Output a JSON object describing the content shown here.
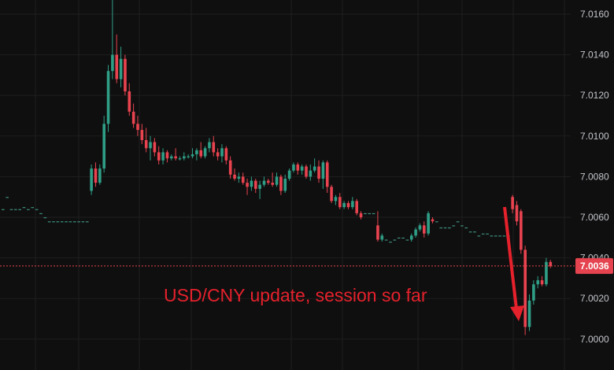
{
  "chart_data": {
    "type": "candlestick",
    "title": "",
    "xlabel": "",
    "ylabel": "",
    "ylim": [
      6.999,
      7.0167
    ],
    "y_ticks": [
      "7.0160",
      "7.0140",
      "7.0120",
      "7.0100",
      "7.0080",
      "7.0060",
      "7.0040",
      "7.0020",
      "7.0000"
    ],
    "y_tick_values": [
      7.016,
      7.014,
      7.012,
      7.01,
      7.008,
      7.006,
      7.004,
      7.002,
      7.0
    ],
    "grid": true,
    "last_price": 7.0036,
    "last_price_label": "7.0036",
    "colors": {
      "up": "#2f9e86",
      "down": "#e8434f",
      "background": "#0f0f0f",
      "grid": "#1f1f1f",
      "annotation": "#e5212c",
      "last_price": "#e5434f"
    },
    "annotation": "USD/CNY update, session so far",
    "candles": [
      [
        7.0064,
        7.0064,
        7.0064,
        7.0064
      ],
      [
        7.007,
        7.007,
        7.007,
        7.007
      ],
      [
        7.0064,
        7.0064,
        7.0064,
        7.0064
      ],
      [
        7.0064,
        7.0064,
        7.0064,
        7.0064
      ],
      [
        7.0064,
        7.0064,
        7.0064,
        7.0064
      ],
      [
        7.0065,
        7.0065,
        7.0065,
        7.0065
      ],
      [
        7.0064,
        7.0064,
        7.0064,
        7.0064
      ],
      [
        7.0065,
        7.0065,
        7.0065,
        7.0065
      ],
      [
        7.0064,
        7.0064,
        7.0064,
        7.0064
      ],
      [
        7.0062,
        7.0062,
        7.0062,
        7.0062
      ],
      [
        7.006,
        7.006,
        7.006,
        7.006
      ],
      [
        7.0058,
        7.0058,
        7.0058,
        7.0058
      ],
      [
        7.0058,
        7.0058,
        7.0058,
        7.0058
      ],
      [
        7.0058,
        7.0058,
        7.0058,
        7.0058
      ],
      [
        7.0058,
        7.0058,
        7.0058,
        7.0058
      ],
      [
        7.0058,
        7.0058,
        7.0058,
        7.0058
      ],
      [
        7.0058,
        7.0058,
        7.0058,
        7.0058
      ],
      [
        7.0058,
        7.0058,
        7.0058,
        7.0058
      ],
      [
        7.0058,
        7.0058,
        7.0058,
        7.0058
      ],
      [
        7.0058,
        7.0058,
        7.0058,
        7.0058
      ],
      [
        7.0058,
        7.0058,
        7.0058,
        7.0058
      ],
      [
        7.0073,
        7.0086,
        7.0071,
        7.0084
      ],
      [
        7.0084,
        7.0087,
        7.0075,
        7.0077
      ],
      [
        7.0077,
        7.0086,
        7.0076,
        7.0084
      ],
      [
        7.0084,
        7.011,
        7.0082,
        7.0106
      ],
      [
        7.0106,
        7.0135,
        7.0102,
        7.0132
      ],
      [
        7.0132,
        7.0167,
        7.0128,
        7.014
      ],
      [
        7.014,
        7.015,
        7.0126,
        7.0128
      ],
      [
        7.0128,
        7.0144,
        7.0124,
        7.0138
      ],
      [
        7.0138,
        7.014,
        7.012,
        7.0122
      ],
      [
        7.0122,
        7.0126,
        7.011,
        7.0112
      ],
      [
        7.0112,
        7.0116,
        7.0104,
        7.0106
      ],
      [
        7.0106,
        7.011,
        7.01,
        7.0103
      ],
      [
        7.0103,
        7.0106,
        7.0096,
        7.0098
      ],
      [
        7.0098,
        7.0104,
        7.0092,
        7.0094
      ],
      [
        7.0094,
        7.01,
        7.0088,
        7.0097
      ],
      [
        7.0097,
        7.0099,
        7.009,
        7.0092
      ],
      [
        7.0092,
        7.0095,
        7.0086,
        7.0088
      ],
      [
        7.0088,
        7.0094,
        7.0086,
        7.0092
      ],
      [
        7.0092,
        7.0093,
        7.0087,
        7.0089
      ],
      [
        7.0089,
        7.0091,
        7.0088,
        7.009
      ],
      [
        7.009,
        7.0094,
        7.0088,
        7.0089
      ],
      [
        7.0089,
        7.009,
        7.0088,
        7.0089
      ],
      [
        7.0089,
        7.0092,
        7.0088,
        7.009
      ],
      [
        7.009,
        7.0091,
        7.0089,
        7.009
      ],
      [
        7.009,
        7.0094,
        7.0089,
        7.0091
      ],
      [
        7.0091,
        7.0094,
        7.0088,
        7.0093
      ],
      [
        7.0093,
        7.0097,
        7.0089,
        7.009
      ],
      [
        7.009,
        7.0095,
        7.0089,
        7.0094
      ],
      [
        7.0094,
        7.0099,
        7.0092,
        7.0097
      ],
      [
        7.0097,
        7.01,
        7.009,
        7.0092
      ],
      [
        7.0092,
        7.0094,
        7.0088,
        7.009
      ],
      [
        7.009,
        7.0096,
        7.0087,
        7.0094
      ],
      [
        7.0094,
        7.0095,
        7.0086,
        7.0088
      ],
      [
        7.0088,
        7.009,
        7.0079,
        7.0081
      ],
      [
        7.0081,
        7.0084,
        7.0078,
        7.0079
      ],
      [
        7.0079,
        7.0082,
        7.0077,
        7.008
      ],
      [
        7.008,
        7.0082,
        7.0076,
        7.0077
      ],
      [
        7.0077,
        7.0079,
        7.0071,
        7.0075
      ],
      [
        7.0075,
        7.008,
        7.0073,
        7.0078
      ],
      [
        7.0078,
        7.0079,
        7.0072,
        7.0074
      ],
      [
        7.0074,
        7.0078,
        7.0069,
        7.0076
      ],
      [
        7.0076,
        7.008,
        7.0075,
        7.0078
      ],
      [
        7.0078,
        7.0079,
        7.0076,
        7.0077
      ],
      [
        7.0077,
        7.0082,
        7.0075,
        7.0076
      ],
      [
        7.0076,
        7.0082,
        7.0075,
        7.008
      ],
      [
        7.008,
        7.0081,
        7.0071,
        7.0073
      ],
      [
        7.0073,
        7.0081,
        7.0072,
        7.0079
      ],
      [
        7.0079,
        7.0084,
        7.0078,
        7.0083
      ],
      [
        7.0083,
        7.0087,
        7.0082,
        7.0086
      ],
      [
        7.0086,
        7.0087,
        7.0081,
        7.0083
      ],
      [
        7.0083,
        7.0086,
        7.0081,
        7.0085
      ],
      [
        7.0085,
        7.0086,
        7.0079,
        7.008
      ],
      [
        7.008,
        7.0086,
        7.0078,
        7.0083
      ],
      [
        7.0083,
        7.0089,
        7.0082,
        7.0085
      ],
      [
        7.0085,
        7.0088,
        7.0077,
        7.0079
      ],
      [
        7.0079,
        7.0088,
        7.0074,
        7.0087
      ],
      [
        7.0087,
        7.0088,
        7.0072,
        7.0075
      ],
      [
        7.0075,
        7.0076,
        7.0067,
        7.0068
      ],
      [
        7.0068,
        7.0071,
        7.0066,
        7.007
      ],
      [
        7.007,
        7.0072,
        7.0064,
        7.0065
      ],
      [
        7.0065,
        7.0068,
        7.0064,
        7.0067
      ],
      [
        7.0067,
        7.0068,
        7.0064,
        7.0065
      ],
      [
        7.0065,
        7.007,
        7.0064,
        7.0068
      ],
      [
        7.0068,
        7.0069,
        7.0061,
        7.0062
      ],
      [
        7.0062,
        7.0063,
        7.0059,
        7.006
      ],
      [
        7.0062,
        7.0062,
        7.0062,
        7.0062
      ],
      [
        7.0062,
        7.0062,
        7.0062,
        7.0062
      ],
      [
        7.0062,
        7.0062,
        7.0062,
        7.0062
      ],
      [
        7.0056,
        7.0063,
        7.0048,
        7.0049
      ],
      [
        7.0049,
        7.0052,
        7.0048,
        7.0051
      ],
      [
        7.0049,
        7.0049,
        7.0049,
        7.0049
      ],
      [
        7.0048,
        7.0048,
        7.0048,
        7.0048
      ],
      [
        7.0049,
        7.0049,
        7.0049,
        7.0049
      ],
      [
        7.005,
        7.005,
        7.005,
        7.005
      ],
      [
        7.005,
        7.005,
        7.005,
        7.005
      ],
      [
        7.0049,
        7.0049,
        7.0049,
        7.0049
      ],
      [
        7.0049,
        7.0052,
        7.0048,
        7.0051
      ],
      [
        7.0051,
        7.0055,
        7.005,
        7.0054
      ],
      [
        7.0054,
        7.0057,
        7.0053,
        7.0056
      ],
      [
        7.0056,
        7.0058,
        7.005,
        7.0052
      ],
      [
        7.0052,
        7.0063,
        7.0051,
        7.0062
      ],
      [
        7.0059,
        7.006,
        7.0057,
        7.0058
      ],
      [
        7.0058,
        7.0058,
        7.0058,
        7.0058
      ],
      [
        7.0055,
        7.0055,
        7.0055,
        7.0055
      ],
      [
        7.0055,
        7.0055,
        7.0055,
        7.0055
      ],
      [
        7.0055,
        7.0055,
        7.0055,
        7.0055
      ],
      [
        7.0056,
        7.0056,
        7.0056,
        7.0056
      ],
      [
        7.0058,
        7.0058,
        7.0058,
        7.0058
      ],
      [
        7.0056,
        7.0056,
        7.0056,
        7.0056
      ],
      [
        7.0055,
        7.0055,
        7.0055,
        7.0055
      ],
      [
        7.0053,
        7.0053,
        7.0053,
        7.0053
      ],
      [
        7.0053,
        7.0053,
        7.0053,
        7.0053
      ],
      [
        7.0051,
        7.0051,
        7.0051,
        7.0051
      ],
      [
        7.0052,
        7.0052,
        7.0052,
        7.0052
      ],
      [
        7.0052,
        7.0052,
        7.0052,
        7.0052
      ],
      [
        7.0051,
        7.0051,
        7.0051,
        7.0051
      ],
      [
        7.0051,
        7.0051,
        7.0051,
        7.0051
      ],
      [
        7.0051,
        7.0051,
        7.0051,
        7.0051
      ],
      [
        7.0051,
        7.0051,
        7.0051,
        7.0051
      ],
      [
        7.0051,
        7.0051,
        7.0051,
        7.0051
      ],
      [
        7.007,
        7.0071,
        7.0062,
        7.0064
      ],
      [
        7.0066,
        7.0068,
        7.0056,
        7.0058
      ],
      [
        7.0063,
        7.0064,
        7.0042,
        7.0044
      ],
      [
        7.0044,
        7.0046,
        7.0002,
        7.0006
      ],
      [
        7.0006,
        7.0022,
        7.0004,
        7.0019
      ],
      [
        7.0019,
        7.0029,
        7.0017,
        7.0027
      ],
      [
        7.0027,
        7.0031,
        7.0025,
        7.0029
      ],
      [
        7.0029,
        7.0031,
        7.0026,
        7.0027
      ],
      [
        7.0027,
        7.004,
        7.0026,
        7.0038
      ],
      [
        7.0038,
        7.0039,
        7.0035,
        7.0036
      ]
    ]
  }
}
